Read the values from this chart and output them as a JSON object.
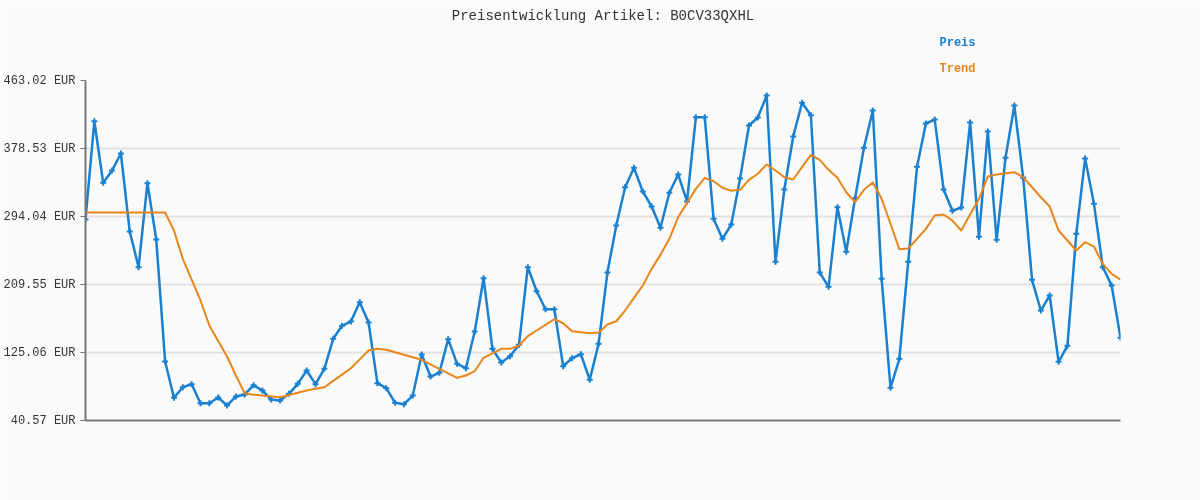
{
  "chart_data": {
    "type": "line",
    "title": "Preisentwicklung Artikel: B0CV33QXHL",
    "categories": [
      null,
      null,
      null,
      null,
      null,
      null,
      null,
      null,
      null,
      null,
      null,
      null,
      null,
      null,
      null,
      null,
      null,
      null,
      null,
      null,
      null,
      null,
      null,
      null,
      null,
      null,
      null,
      null,
      null,
      null,
      null,
      null,
      null,
      null,
      null,
      null,
      null,
      null,
      null,
      null,
      null,
      null,
      null,
      null,
      null,
      null,
      null,
      null,
      null,
      null,
      null,
      null,
      null,
      null,
      null,
      null,
      null,
      null,
      null,
      null,
      null,
      null,
      null,
      null,
      null,
      null,
      null,
      null,
      null,
      null,
      null,
      null,
      null,
      null,
      null,
      null,
      null,
      null,
      null,
      null,
      null,
      null,
      null,
      null,
      null,
      null,
      null,
      null,
      null,
      null,
      null,
      null,
      null,
      null,
      null,
      null,
      null,
      null,
      null,
      null,
      null,
      null,
      null,
      null,
      null,
      null,
      null,
      null,
      null,
      null,
      null,
      null,
      null,
      null,
      null,
      null,
      null,
      null
    ],
    "ylim": [
      40.57,
      463.02
    ],
    "yticks": [
      {
        "value": 40.57,
        "label": "40.57 EUR"
      },
      {
        "value": 125.06,
        "label": "125.06 EUR"
      },
      {
        "value": 209.55,
        "label": "209.55 EUR"
      },
      {
        "value": 294.04,
        "label": "294.04 EUR"
      },
      {
        "value": 378.53,
        "label": "378.53 EUR"
      },
      {
        "value": 463.02,
        "label": "463.02 EUR"
      }
    ],
    "tick_labels": "y",
    "grid": "y",
    "series": [
      {
        "name": "Preis",
        "color": "#1a80d0",
        "marker": "cross",
        "values": [
          290.3,
          412.4,
          335.9,
          351.2,
          372.3,
          275.4,
          231.0,
          335.4,
          265.4,
          113.9,
          68.8,
          81.9,
          85.7,
          62.0,
          62.0,
          69.1,
          59.2,
          70.4,
          72.9,
          84.4,
          77.8,
          66.6,
          65.4,
          73.7,
          86.1,
          102.7,
          85.7,
          104.8,
          142.1,
          158.2,
          163.6,
          187.5,
          162.3,
          86.9,
          80.7,
          62.5,
          60.8,
          71.6,
          122.6,
          95.2,
          99.8,
          141.6,
          111.0,
          105.5,
          151.1,
          217.4,
          129.6,
          112.6,
          120.4,
          134.6,
          231.0,
          201.2,
          178.8,
          178.8,
          108.0,
          118.0,
          122.9,
          91.1,
          135.8,
          224.4,
          282.8,
          330.4,
          354.5,
          325.1,
          306.4,
          280.0,
          323.5,
          346.2,
          312.7,
          417.4,
          417.4,
          291.2,
          266.3,
          284.1,
          341.2,
          407.1,
          417.0,
          444.4,
          237.7,
          327.6,
          393.4,
          435.3,
          419.9,
          224.4,
          206.7,
          305.6,
          250.2,
          316.8,
          379.4,
          425.7,
          216.6,
          81.2,
          117.2,
          237.7,
          355.8,
          409.6,
          414.5,
          327.6,
          301.1,
          305.2,
          410.8,
          268.8,
          399.6,
          265.1,
          367.0,
          431.9,
          342.1,
          215.4,
          177.2,
          195.9,
          113.5,
          133.4,
          272.5,
          366.1,
          309.8,
          231.0,
          208.3,
          143.3
        ]
      },
      {
        "name": "Trend",
        "color": "#e8861a",
        "marker": "none",
        "values": [
          299.0,
          299.0,
          299.0,
          299.0,
          299.0,
          299.0,
          299.0,
          299.0,
          299.0,
          299.0,
          276.6,
          241.5,
          215.6,
          189.7,
          158.6,
          139.4,
          120.1,
          96.5,
          74.5,
          72.5,
          71.5,
          70.5,
          69.5,
          72.3,
          75.0,
          77.8,
          79.9,
          81.9,
          89.8,
          97.6,
          105.5,
          116.5,
          127.5,
          129.6,
          128.4,
          125.3,
          122.2,
          119.1,
          116.0,
          110.4,
          104.8,
          99.2,
          93.6,
          96.5,
          101.8,
          118.5,
          124.1,
          129.6,
          129.6,
          133.7,
          145.3,
          152.4,
          159.4,
          166.4,
          161.4,
          151.5,
          150.3,
          149.0,
          149.9,
          159.8,
          163.9,
          177.2,
          193.0,
          208.3,
          229.0,
          246.4,
          266.3,
          293.2,
          311.0,
          328.4,
          342.1,
          337.9,
          329.7,
          326.0,
          327.2,
          339.6,
          347.1,
          358.6,
          351.2,
          342.9,
          340.0,
          355.3,
          370.7,
          364.5,
          352.0,
          342.1,
          324.2,
          311.8,
          327.2,
          336.3,
          316.0,
          285.0,
          253.4,
          254.3,
          266.3,
          278.7,
          295.3,
          296.5,
          289.0,
          276.6,
          296.5,
          316.0,
          343.7,
          346.2,
          347.8,
          349.1,
          342.9,
          330.4,
          318.0,
          306.4,
          276.6,
          264.2,
          251.8,
          262.1,
          256.7,
          235.2,
          222.8,
          215.7
        ]
      }
    ]
  }
}
